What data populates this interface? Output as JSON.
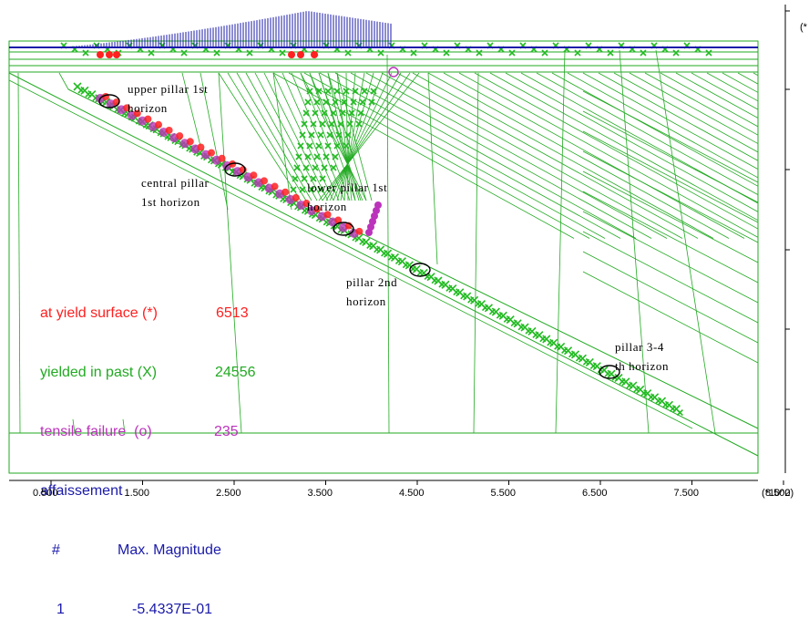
{
  "legend": {
    "yield_label": "at yield surface (*)",
    "yield_count": "6513",
    "past_label": "yielded in past (X)",
    "past_count": "24556",
    "tensile_label": "tensile failure  (o)",
    "tensile_count": "235",
    "series_name": "affaissement",
    "col_number": "#",
    "col_magnitude": "Max. Magnitude",
    "row_number": "1",
    "row_magnitude": "-5.4337E-01"
  },
  "annotations": {
    "upper_pillar_line1": "upper pillar 1st",
    "upper_pillar_line2": "horizon",
    "central_pillar_line1": "central pillar",
    "central_pillar_line2": "1st horizon",
    "lower_pillar_line1": "lower pillar 1st",
    "lower_pillar_line2": "horizon",
    "pillar2_line1": "pillar 2nd",
    "pillar2_line2": "horizon",
    "pillar34_line1": "pillar 3-4",
    "pillar34_line2": "th horizon"
  },
  "x_axis": {
    "ticks": [
      "0.500",
      "1.500",
      "2.500",
      "3.500",
      "4.500",
      "5.500",
      "6.500",
      "7.500",
      "8.500"
    ],
    "unit_label": "(*10^2)"
  },
  "corner_label": "(*",
  "colors": {
    "mesh": "#22aa22",
    "yield": "#ff2020",
    "past": "#22bb22",
    "tensile": "#bb33bb",
    "affaissement": "#1a1aaa",
    "axis": "#000000"
  }
}
